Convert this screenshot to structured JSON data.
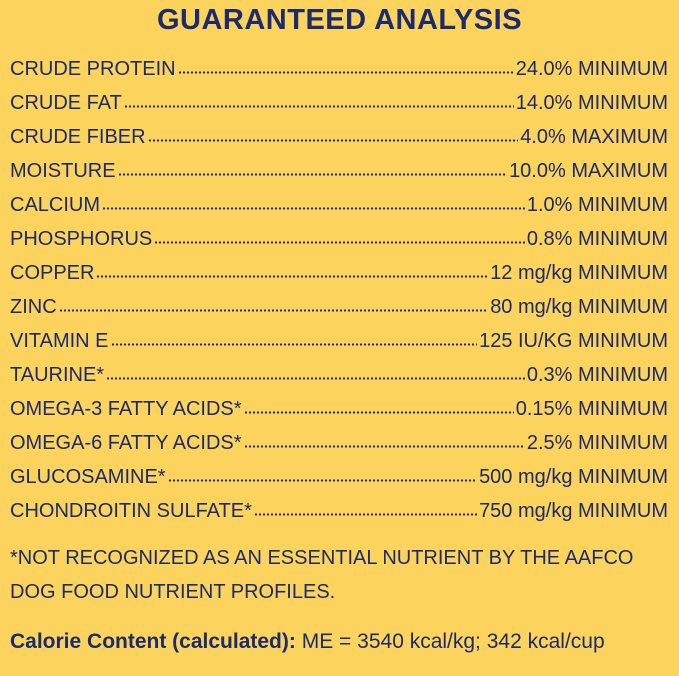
{
  "title": "GUARANTEED ANALYSIS",
  "rows": [
    {
      "name": "CRUDE PROTEIN",
      "value": "24.0% MINIMUM"
    },
    {
      "name": "CRUDE FAT",
      "value": "14.0% MINIMUM"
    },
    {
      "name": "CRUDE FIBER",
      "value": "4.0% MAXIMUM"
    },
    {
      "name": "MOISTURE",
      "value": "10.0% MAXIMUM"
    },
    {
      "name": "CALCIUM",
      "value": "1.0% MINIMUM"
    },
    {
      "name": "PHOSPHORUS",
      "value": "0.8% MINIMUM"
    },
    {
      "name": "COPPER",
      "value": "12 mg/kg MINIMUM"
    },
    {
      "name": "ZINC",
      "value": "80 mg/kg MINIMUM"
    },
    {
      "name": "VITAMIN E",
      "value": "125 IU/KG MINIMUM"
    },
    {
      "name": "TAURINE*",
      "value": "0.3% MINIMUM"
    },
    {
      "name": "OMEGA-3 FATTY ACIDS*",
      "value": "0.15% MINIMUM"
    },
    {
      "name": "OMEGA-6 FATTY ACIDS*",
      "value": "2.5% MINIMUM"
    },
    {
      "name": "GLUCOSAMINE*",
      "value": "500 mg/kg MINIMUM"
    },
    {
      "name": "CHONDROITIN SULFATE*",
      "value": "750 mg/kg MINIMUM"
    }
  ],
  "footnote": "*NOT RECOGNIZED AS AN ESSENTIAL NUTRIENT BY THE AAFCO DOG FOOD NUTRIENT PROFILES.",
  "calorie": {
    "label": "Calorie Content (calculated):",
    "value": "ME = 3540 kcal/kg; 342 kcal/cup"
  }
}
